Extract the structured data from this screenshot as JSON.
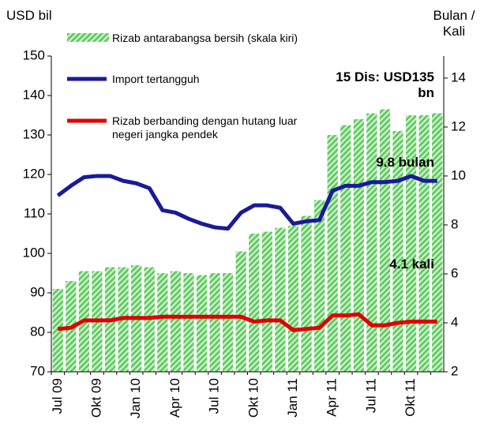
{
  "chart_data": {
    "type": "bar",
    "y_label": "USD bil",
    "y2_label": "Bulan / Kali",
    "categories": [
      "Jul 09",
      null,
      null,
      "Okt 09",
      null,
      null,
      "Jan 10",
      null,
      null,
      "Apr 10",
      null,
      null,
      "Jul 10",
      null,
      null,
      "Okt 10",
      null,
      null,
      "Jan 11",
      null,
      null,
      "Apr 11",
      null,
      null,
      "Jul 11",
      null,
      null,
      "Okt 11",
      null,
      null
    ],
    "series": [
      {
        "name": "Rizab antarabangsa bersih (skala kiri)",
        "type": "bar",
        "axis": "y",
        "color": "#5cc85c",
        "values": [
          91,
          93,
          95.5,
          95.5,
          96.5,
          96.5,
          97,
          96.5,
          95,
          95.5,
          95,
          94.5,
          95,
          95,
          100.5,
          105,
          105.5,
          106.5,
          107,
          109.5,
          113.5,
          130,
          132.5,
          134,
          135.5,
          136.5,
          131,
          135,
          135,
          135.5
        ]
      },
      {
        "name": "Import tertangguh",
        "type": "line",
        "axis": "y2",
        "color": "#1a1a99",
        "values": [
          9.2,
          9.6,
          9.95,
          10.0,
          10.0,
          9.8,
          9.7,
          9.5,
          8.6,
          8.5,
          8.25,
          8.05,
          7.9,
          7.85,
          8.5,
          8.8,
          8.8,
          8.7,
          8.05,
          8.15,
          8.2,
          9.4,
          9.6,
          9.6,
          9.75,
          9.75,
          9.8,
          10.0,
          9.8,
          9.8
        ]
      },
      {
        "name": "Rizab berbanding dengan hutang luar negeri jangka pendek",
        "type": "line",
        "axis": "y2",
        "color": "#e00000",
        "values": [
          3.75,
          3.8,
          4.1,
          4.1,
          4.1,
          4.2,
          4.2,
          4.2,
          4.25,
          4.25,
          4.25,
          4.25,
          4.25,
          4.25,
          4.25,
          4.05,
          4.1,
          4.1,
          3.7,
          3.75,
          3.8,
          4.3,
          4.3,
          4.35,
          3.9,
          3.9,
          4.0,
          4.05,
          4.05,
          4.05
        ]
      }
    ],
    "annotations": [
      "15 Dis: USD135 bn",
      "9.8 bulan",
      "4.1 kali"
    ],
    "ylim": [
      70,
      150
    ],
    "yticks": [
      70,
      80,
      90,
      100,
      110,
      120,
      130,
      140,
      150
    ],
    "y2lim": [
      2,
      14.9
    ],
    "y2ticks": [
      2,
      4,
      6,
      8,
      10,
      12,
      14
    ],
    "grid": false
  }
}
